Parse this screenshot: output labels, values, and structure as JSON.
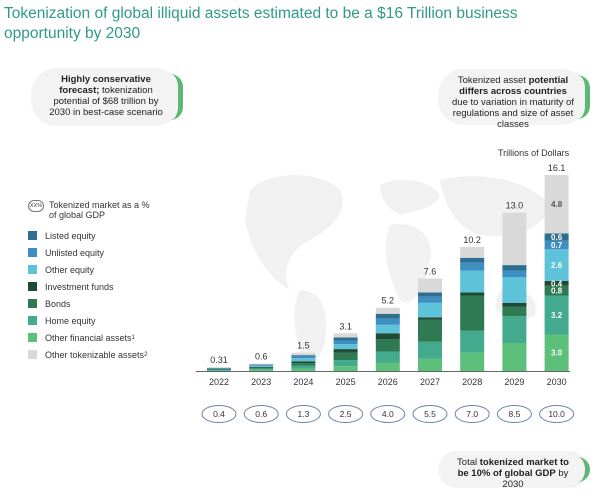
{
  "title": "Tokenization of global illiquid assets estimated to be a $16 Trillion business opportunity by 2030",
  "callouts": {
    "left_bold": "Highly conservative forecast;",
    "left_text": "tokenization potential of $68 trillion by 2030 in best-case scenario",
    "right_pre": "Tokenized asset ",
    "right_bold1": "potential differs across countries",
    "right_post": " due to variation in maturity of regulations and size of asset classes",
    "bottom_pre": "Total ",
    "bottom_bold": "tokenized market to be 10% of global GDP",
    "bottom_post": " by 2030"
  },
  "units_label": "Trillions of Dollars",
  "legend_header": "Tokenized market as a % of global GDP",
  "legend_badge": "XX%",
  "legend": [
    {
      "label": "Listed equity",
      "sup": "",
      "color": "#2e6e8e"
    },
    {
      "label": "Unlisted equity",
      "sup": "",
      "color": "#3d8fc2"
    },
    {
      "label": "Other equity",
      "sup": "",
      "color": "#5ec3d8"
    },
    {
      "label": "Investment funds",
      "sup": "",
      "color": "#1f4a33"
    },
    {
      "label": "Bonds",
      "sup": "",
      "color": "#2f7a52"
    },
    {
      "label": "Home equity",
      "sup": "",
      "color": "#43aa8e"
    },
    {
      "label": "Other financial assets",
      "sup": "1",
      "color": "#5cbf7a"
    },
    {
      "label": "Other tokenizable assets",
      "sup": "2",
      "color": "#d9d9d9"
    }
  ],
  "chart_data": {
    "type": "bar",
    "stacked": true,
    "categories": [
      "2022",
      "2023",
      "2024",
      "2025",
      "2026",
      "2027",
      "2028",
      "2029",
      "2030"
    ],
    "totals": [
      0.31,
      0.6,
      1.5,
      3.1,
      5.2,
      7.6,
      10.2,
      13.0,
      16.1
    ],
    "total_labels": [
      "0.31",
      "0.6",
      "1.5",
      "3.1",
      "5.2",
      "7.6",
      "10.2",
      "13.0",
      "16.1"
    ],
    "gdp_percent": [
      "0.4",
      "0.6",
      "1.3",
      "2.5",
      "4.0",
      "5.5",
      "7.0",
      "8.5",
      "10.0"
    ],
    "series": [
      {
        "name": "Other financial assets",
        "values": [
          0.05,
          0.1,
          0.2,
          0.4,
          0.7,
          1.0,
          1.5,
          2.3,
          3.0
        ]
      },
      {
        "name": "Home equity",
        "values": [
          0.05,
          0.1,
          0.25,
          0.5,
          0.9,
          1.4,
          1.8,
          2.2,
          3.2
        ]
      },
      {
        "name": "Bonds",
        "values": [
          0.04,
          0.08,
          0.2,
          0.6,
          1.0,
          1.8,
          2.9,
          0.8,
          0.8
        ]
      },
      {
        "name": "Investment funds",
        "values": [
          0.02,
          0.05,
          0.15,
          0.3,
          0.5,
          0.2,
          0.25,
          0.3,
          0.4
        ]
      },
      {
        "name": "Other equity",
        "values": [
          0.05,
          0.1,
          0.25,
          0.4,
          0.7,
          1.2,
          1.8,
          2.1,
          2.6
        ]
      },
      {
        "name": "Unlisted equity",
        "values": [
          0.03,
          0.06,
          0.15,
          0.3,
          0.5,
          0.5,
          0.65,
          0.55,
          0.7
        ]
      },
      {
        "name": "Listed equity",
        "values": [
          0.02,
          0.04,
          0.1,
          0.25,
          0.4,
          0.35,
          0.4,
          0.45,
          0.6
        ]
      },
      {
        "name": "Other tokenizable assets",
        "values": [
          0.05,
          0.07,
          0.2,
          0.35,
          0.5,
          1.15,
          0.9,
          4.3,
          4.8
        ]
      }
    ],
    "segment_labels_2030": {
      "Other financial assets": "3.0",
      "Home equity": "3.2",
      "Bonds": "0.8",
      "Investment funds": "0.4",
      "Other equity": "2.6",
      "Unlisted equity": "0.7",
      "Listed equity": "0.6",
      "Other tokenizable assets": "4.8"
    },
    "ylim": [
      0,
      16.1
    ]
  }
}
